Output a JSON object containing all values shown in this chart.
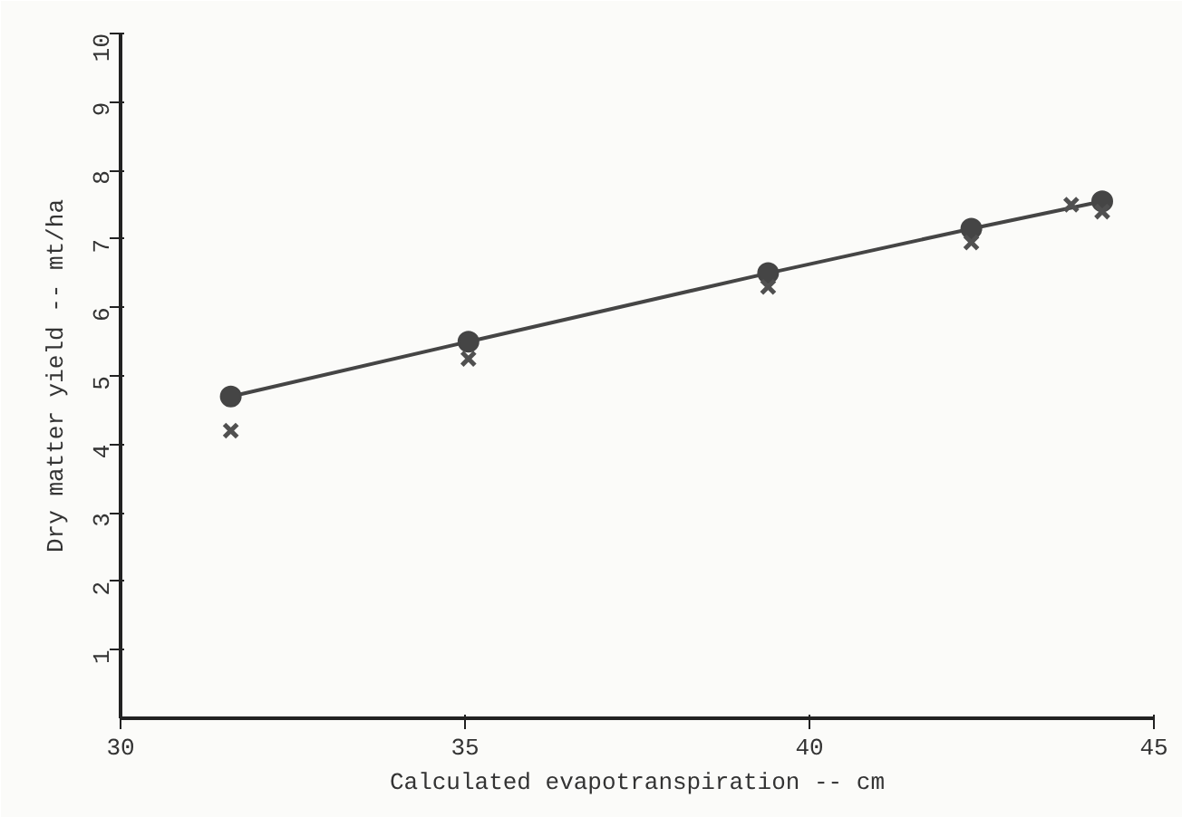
{
  "chart_data": {
    "type": "scatter",
    "xlabel": "Calculated evapotranspiration -- cm",
    "ylabel": "Dry matter yield -- mt/ha",
    "xlim": [
      30,
      45
    ],
    "xticks": [
      30,
      35,
      40,
      45
    ],
    "ylim": [
      0,
      10
    ],
    "yticks": [
      1,
      2,
      3,
      4,
      5,
      6,
      7,
      8,
      9,
      10
    ],
    "series": [
      {
        "type": "line",
        "marker": "circle",
        "color": "#454545",
        "x": [
          31.6,
          35.05,
          39.4,
          42.35,
          44.25
        ],
        "values": [
          4.7,
          5.5,
          6.5,
          7.15,
          7.55
        ]
      },
      {
        "marker": "cross",
        "color": "#505050",
        "x": [
          31.6,
          35.05,
          39.4,
          42.35,
          43.8,
          44.25
        ],
        "values": [
          4.2,
          5.25,
          6.3,
          6.95,
          7.5,
          7.4
        ]
      }
    ]
  }
}
